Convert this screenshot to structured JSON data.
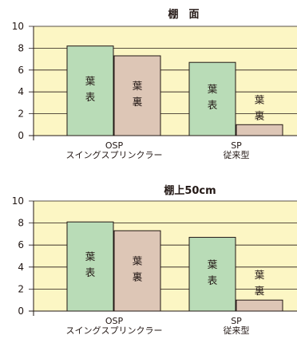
{
  "colors": {
    "plot_background": "#fcf6c4",
    "grid": "#231815",
    "front_bar": "#b9dcb7",
    "back_bar": "#ddc6b6",
    "bar_outline": "#231815",
    "text": "#231815"
  },
  "chart_data": [
    {
      "type": "bar",
      "title": "棚　面",
      "ylim": [
        0,
        10
      ],
      "yticks": [
        0,
        2,
        4,
        6,
        8,
        10
      ],
      "grid": true,
      "categories": [
        [
          "OSP",
          "スイングスプリンクラー"
        ],
        [
          "SP",
          "従来型"
        ]
      ],
      "series": [
        {
          "name": "葉表",
          "values": [
            8.2,
            6.7
          ]
        },
        {
          "name": "葉裏",
          "values": [
            7.3,
            1.0
          ]
        }
      ]
    },
    {
      "type": "bar",
      "title": "棚上50cm",
      "ylim": [
        0,
        10
      ],
      "yticks": [
        0,
        2,
        4,
        6,
        8,
        10
      ],
      "grid": true,
      "categories": [
        [
          "OSP",
          "スイングスプリンクラー"
        ],
        [
          "SP",
          "従来型"
        ]
      ],
      "series": [
        {
          "name": "葉表",
          "values": [
            8.1,
            6.7
          ]
        },
        {
          "name": "葉裏",
          "values": [
            7.3,
            1.0
          ]
        }
      ]
    }
  ]
}
